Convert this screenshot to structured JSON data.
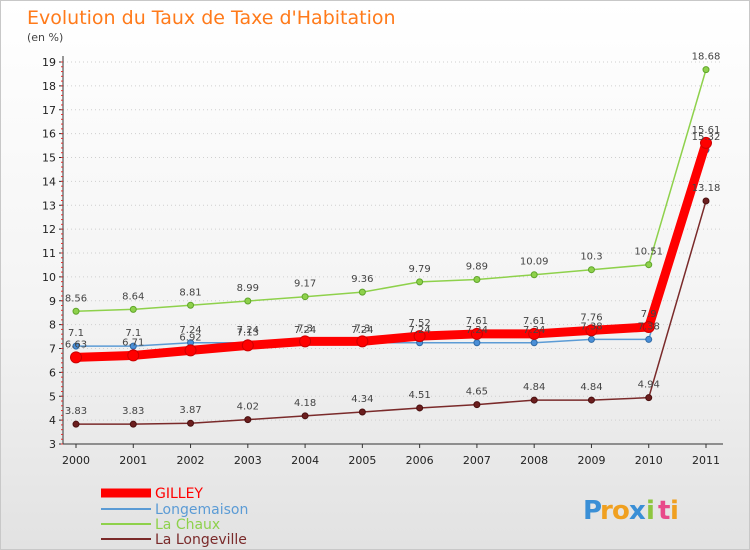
{
  "chart_data": {
    "type": "line",
    "title": "Evolution du Taux de Taxe d'Habitation",
    "subtitle": "(en %)",
    "xlabel": "",
    "ylabel": "(en %)",
    "ylim": [
      3,
      19
    ],
    "yticks": [
      "3",
      "4",
      "5",
      "6",
      "7",
      "8",
      "9",
      "10",
      "11",
      "12",
      "13",
      "14",
      "15",
      "16",
      "17",
      "18",
      "19"
    ],
    "x": [
      "2000",
      "2001",
      "2002",
      "2003",
      "2004",
      "2005",
      "2006",
      "2007",
      "2008",
      "2009",
      "2010",
      "2011"
    ],
    "grid": "horizontal-dotted",
    "legend_position": "bottom-left",
    "series": [
      {
        "name": "GILLEY",
        "color": "#ff0000",
        "values": [
          6.63,
          6.71,
          6.92,
          7.13,
          7.3,
          7.3,
          7.52,
          7.61,
          7.61,
          7.76,
          7.9,
          15.61
        ],
        "labels": [
          "6.63",
          "6.71",
          "6.92",
          "7.13",
          "7.3",
          "7.3",
          "7.52",
          "7.61",
          "7.61",
          "7.76",
          "7.9",
          "15.61"
        ]
      },
      {
        "name": "Longemaison",
        "color": "#5b9bd5",
        "values": [
          7.1,
          7.1,
          7.24,
          7.24,
          7.24,
          7.24,
          7.24,
          7.24,
          7.24,
          7.38,
          7.38,
          15.32
        ],
        "labels": [
          "7.1",
          "7.1",
          "7.24",
          "7.24",
          "7.24",
          "7.24",
          "7.24",
          "7.24",
          "7.24",
          "7.38",
          "7.38",
          "15.32"
        ]
      },
      {
        "name": "La Chaux",
        "color": "#8ed14b",
        "values": [
          8.56,
          8.64,
          8.81,
          8.99,
          9.17,
          9.36,
          9.79,
          9.89,
          10.09,
          10.3,
          10.51,
          18.68
        ],
        "labels": [
          "8.56",
          "8.64",
          "8.81",
          "8.99",
          "9.17",
          "9.36",
          "9.79",
          "9.89",
          "10.09",
          "10.3",
          "10.51",
          "18.68"
        ]
      },
      {
        "name": "La Longeville",
        "color": "#7a2a2a",
        "values": [
          3.83,
          3.83,
          3.87,
          4.02,
          4.18,
          4.34,
          4.51,
          4.65,
          4.84,
          4.84,
          4.94,
          13.18
        ],
        "labels": [
          "3.83",
          "3.83",
          "3.87",
          "4.02",
          "4.18",
          "4.34",
          "4.51",
          "4.65",
          "4.84",
          "4.84",
          "4.94",
          "13.18"
        ]
      }
    ]
  },
  "brand": {
    "logo_letters": [
      "P",
      "r",
      "o",
      "x",
      "i",
      "t",
      "i"
    ],
    "logo_colors": [
      "#3a8fd6",
      "#f0a020",
      "#f0a020",
      "#3a8fd6",
      "#8ec63f",
      "#e84a8a",
      "#f0a020"
    ]
  }
}
